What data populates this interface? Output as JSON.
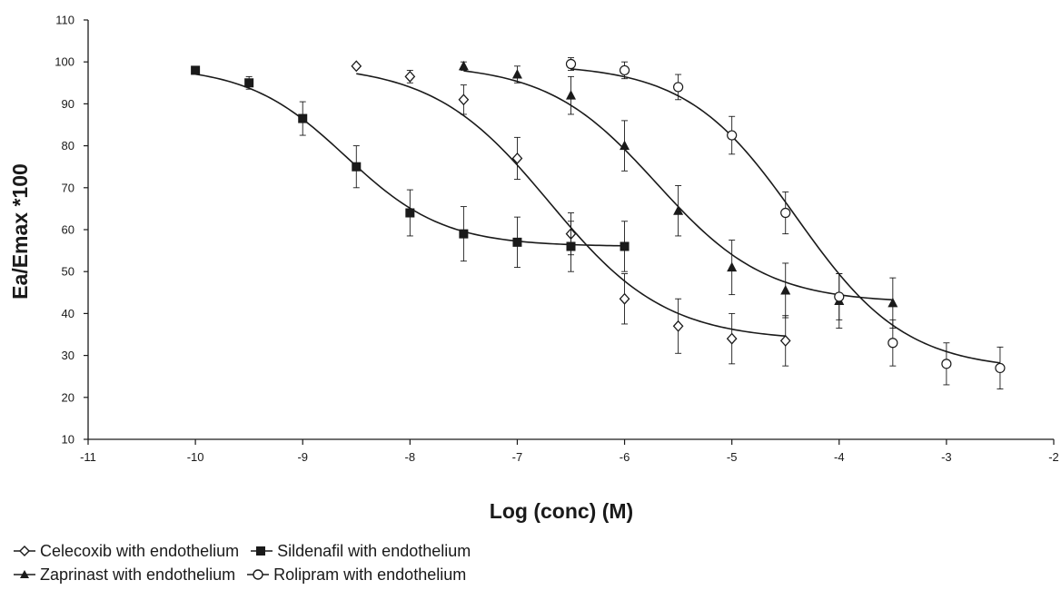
{
  "chart_data": {
    "type": "line",
    "title": "",
    "xlabel": "Log (conc) (M)",
    "ylabel": "Ea/Emax *100",
    "xlim": [
      -11,
      -2
    ],
    "ylim": [
      10,
      110
    ],
    "x_ticks": [
      -11,
      -10,
      -9,
      -8,
      -7,
      -6,
      -5,
      -4,
      -3,
      -2
    ],
    "y_ticks": [
      10,
      20,
      30,
      40,
      50,
      60,
      70,
      80,
      90,
      100,
      110
    ],
    "grid": false,
    "legend_position": "bottom-left",
    "series": [
      {
        "name": "Celecoxib with endothelium",
        "marker": "diamond-open",
        "x": [
          -8.5,
          -8,
          -7.5,
          -7,
          -6.5,
          -6,
          -5.5,
          -5,
          -4.5
        ],
        "y": [
          99,
          96.5,
          91,
          77,
          59,
          43.5,
          37,
          34,
          33.5
        ],
        "err": [
          0.5,
          1.5,
          3.5,
          5,
          5,
          6,
          6.5,
          6,
          6
        ],
        "curve": {
          "top": 99.5,
          "bottom": 33.5,
          "ec50": -6.7,
          "hill": 0.8
        }
      },
      {
        "name": "Sildenafil with endothelium",
        "marker": "square-filled",
        "x": [
          -10,
          -9.5,
          -9,
          -8.5,
          -8,
          -7.5,
          -7,
          -6.5,
          -6
        ],
        "y": [
          98,
          95,
          86.5,
          75,
          64,
          59,
          57,
          56,
          56
        ],
        "err": [
          0.5,
          1.5,
          4,
          5,
          5.5,
          6.5,
          6,
          6,
          6
        ],
        "curve": {
          "top": 99,
          "bottom": 56,
          "ec50": -8.6,
          "hill": 0.95
        }
      },
      {
        "name": "Zaprinast with endothelium",
        "marker": "triangle-filled",
        "x": [
          -7.5,
          -7,
          -6.5,
          -6,
          -5.5,
          -5,
          -4.5,
          -4,
          -3.5
        ],
        "y": [
          99,
          97,
          92,
          80,
          64.5,
          51,
          45.5,
          43,
          42.5
        ],
        "err": [
          1,
          2,
          4.5,
          6,
          6,
          6.5,
          6.5,
          6.5,
          6
        ],
        "curve": {
          "top": 99.5,
          "bottom": 42.5,
          "ec50": -5.7,
          "hill": 0.85
        }
      },
      {
        "name": "Rolipram with endothelium",
        "marker": "circle-open",
        "x": [
          -6.5,
          -6,
          -5.5,
          -5,
          -4.5,
          -4,
          -3.5,
          -3,
          -2.5
        ],
        "y": [
          99.5,
          98,
          94,
          82.5,
          64,
          44,
          33,
          28,
          27
        ],
        "err": [
          1.5,
          2,
          3,
          4.5,
          5,
          5.5,
          5.5,
          5,
          5
        ],
        "curve": {
          "top": 99.5,
          "bottom": 26.5,
          "ec50": -4.4,
          "hill": 0.85
        }
      }
    ]
  }
}
